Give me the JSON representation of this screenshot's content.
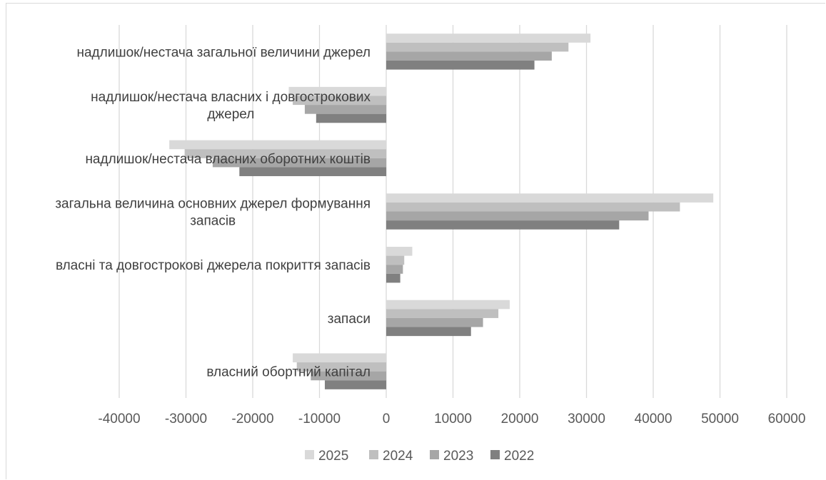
{
  "chart_data": {
    "type": "bar",
    "orientation": "horizontal",
    "title": "",
    "xlabel": "",
    "ylabel": "",
    "xlim": [
      -40000,
      60000
    ],
    "x_ticks": [
      -40000,
      -30000,
      -20000,
      -10000,
      0,
      10000,
      20000,
      30000,
      40000,
      50000,
      60000
    ],
    "grid": "vertical",
    "legend_position": "bottom",
    "categories": [
      [
        "надлишок/нестача загальної величини джерел"
      ],
      [
        "надлишок/нестача власних і довгострокових",
        "джерел"
      ],
      [
        "надлишок/нестача власних оборотних коштів"
      ],
      [
        "загальна величина основних джерел формування",
        "запасів"
      ],
      [
        "власні та довгострокові джерела покриття запасів"
      ],
      [
        "запаси"
      ],
      [
        "власний обортний капітал"
      ]
    ],
    "series": [
      {
        "name": "2025",
        "color": "#d9d9d9",
        "values": [
          30600,
          -14600,
          -32500,
          49000,
          3900,
          18500,
          -14000
        ]
      },
      {
        "name": "2024",
        "color": "#bfbfbf",
        "values": [
          27300,
          -14000,
          -30200,
          44000,
          2700,
          16800,
          -13400
        ]
      },
      {
        "name": "2023",
        "color": "#a6a6a6",
        "values": [
          24800,
          -12200,
          -26000,
          39300,
          2500,
          14500,
          -11300
        ]
      },
      {
        "name": "2022",
        "color": "#808080",
        "values": [
          22200,
          -10500,
          -22000,
          34900,
          2100,
          12700,
          -9200
        ]
      }
    ],
    "grid_color": "#d9d9d9"
  }
}
